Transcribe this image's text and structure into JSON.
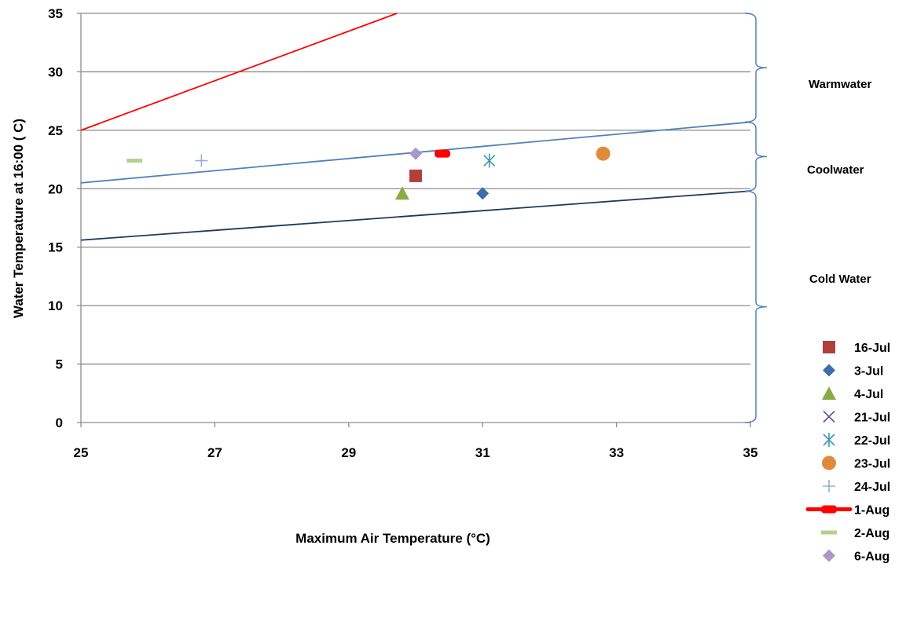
{
  "chart_data": {
    "type": "scatter",
    "xlabel": "Maximum Air Temperature (°C)",
    "ylabel": "Water Temperature at 16:00 ( C)",
    "xlim": [
      25,
      35
    ],
    "ylim": [
      0,
      35
    ],
    "x_ticks": [
      25,
      27,
      29,
      31,
      33,
      35
    ],
    "y_ticks": [
      0,
      5,
      10,
      15,
      20,
      25,
      30,
      35
    ],
    "grid": "horizontal",
    "legend_position": "right",
    "series": [
      {
        "name": "16-Jul",
        "marker": "square",
        "color": "#b0403c",
        "points": [
          [
            30.0,
            21.1
          ]
        ]
      },
      {
        "name": "3-Jul",
        "marker": "diamond",
        "color": "#3e6ca8",
        "points": [
          [
            31.0,
            19.6
          ]
        ]
      },
      {
        "name": "4-Jul",
        "marker": "triangle",
        "color": "#8aaa46",
        "points": [
          [
            29.8,
            19.6
          ]
        ]
      },
      {
        "name": "21-Jul",
        "marker": "x",
        "color": "#6b4f8f",
        "points": []
      },
      {
        "name": "22-Jul",
        "marker": "star",
        "color": "#3a9ab0",
        "points": [
          [
            31.1,
            22.4
          ]
        ]
      },
      {
        "name": "23-Jul",
        "marker": "circle",
        "color": "#e08a3c",
        "points": [
          [
            32.8,
            23.0
          ]
        ]
      },
      {
        "name": "24-Jul",
        "marker": "plus",
        "color": "#95afd8",
        "points": [
          [
            26.8,
            22.4
          ]
        ]
      },
      {
        "name": "1-Aug",
        "marker": "thickdash",
        "color": "#ff0000",
        "points": [
          [
            30.4,
            23.0
          ]
        ]
      },
      {
        "name": "2-Aug",
        "marker": "dash",
        "color": "#b5d18c",
        "points": [
          [
            25.8,
            22.4
          ]
        ]
      },
      {
        "name": "6-Aug",
        "marker": "diamond",
        "color": "#a899c6",
        "points": [
          [
            30.0,
            23.0
          ]
        ]
      }
    ],
    "lines": [
      {
        "color": "#ff0000",
        "points": [
          [
            25,
            25
          ],
          [
            29.72,
            35
          ]
        ]
      },
      {
        "color": "#4f81bd",
        "points": [
          [
            25,
            20.5
          ],
          [
            35,
            25.7
          ]
        ]
      },
      {
        "color": "#1f3a55",
        "points": [
          [
            25,
            15.6
          ],
          [
            35,
            19.8
          ]
        ]
      }
    ],
    "zones": [
      {
        "label": "Warmwater",
        "range": [
          25.7,
          35
        ]
      },
      {
        "label": "Coolwater",
        "range": [
          19.8,
          25.7
        ]
      },
      {
        "label": "Cold Water",
        "range": [
          0,
          19.8
        ]
      }
    ]
  }
}
